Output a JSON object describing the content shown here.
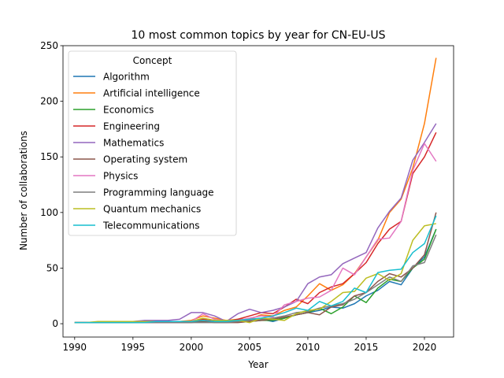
{
  "chart_data": {
    "type": "line",
    "title": "10 most common topics by year for CN-EU-US",
    "xlabel": "Year",
    "ylabel": "Number of collaborations",
    "xlim": [
      1989,
      2022.5
    ],
    "ylim": [
      -12,
      250
    ],
    "xticks": [
      1990,
      1995,
      2000,
      2005,
      2010,
      2015,
      2020
    ],
    "yticks": [
      0,
      50,
      100,
      150,
      200,
      250
    ],
    "grid": false,
    "legend": {
      "title": "Concept",
      "placement": "top-left"
    },
    "x": [
      1990,
      1991,
      1992,
      1993,
      1994,
      1995,
      1996,
      1997,
      1998,
      1999,
      2000,
      2001,
      2002,
      2003,
      2004,
      2005,
      2006,
      2007,
      2008,
      2009,
      2010,
      2011,
      2012,
      2013,
      2014,
      2015,
      2016,
      2017,
      2018,
      2019,
      2020,
      2021
    ],
    "series": [
      {
        "name": "Algorithm",
        "color": "#1f77b4",
        "values": [
          1,
          1,
          1,
          1,
          1,
          1,
          1,
          1,
          1,
          2,
          2,
          2,
          2,
          2,
          3,
          3,
          4,
          2,
          5,
          8,
          10,
          12,
          15,
          14,
          18,
          25,
          30,
          38,
          35,
          50,
          60,
          85
        ]
      },
      {
        "name": "Artificial intelligence",
        "color": "#ff7f0e",
        "values": [
          1,
          1,
          1,
          1,
          1,
          1,
          1,
          1,
          2,
          2,
          3,
          7,
          5,
          3,
          4,
          4,
          8,
          7,
          12,
          15,
          25,
          36,
          30,
          35,
          45,
          60,
          75,
          100,
          112,
          140,
          180,
          239
        ]
      },
      {
        "name": "Economics",
        "color": "#2ca02c",
        "values": [
          1,
          1,
          1,
          1,
          1,
          1,
          1,
          1,
          1,
          1,
          2,
          2,
          2,
          2,
          2,
          2,
          3,
          3,
          5,
          8,
          10,
          14,
          9,
          15,
          25,
          19,
          32,
          40,
          38,
          50,
          58,
          85
        ]
      },
      {
        "name": "Engineering",
        "color": "#d62728",
        "values": [
          1,
          1,
          1,
          1,
          1,
          1,
          1,
          1,
          1,
          2,
          2,
          4,
          3,
          2,
          4,
          7,
          10,
          9,
          15,
          22,
          18,
          28,
          33,
          36,
          45,
          55,
          72,
          85,
          92,
          135,
          150,
          172
        ]
      },
      {
        "name": "Mathematics",
        "color": "#9467bd",
        "values": [
          1,
          1,
          1,
          1,
          2,
          2,
          3,
          3,
          3,
          4,
          10,
          10,
          7,
          2,
          9,
          13,
          10,
          12,
          15,
          20,
          36,
          42,
          44,
          54,
          59,
          64,
          86,
          101,
          113,
          147,
          163,
          180
        ]
      },
      {
        "name": "Operating system",
        "color": "#8c564b",
        "values": [
          1,
          1,
          1,
          1,
          1,
          1,
          1,
          1,
          1,
          1,
          1,
          2,
          1,
          1,
          1,
          2,
          3,
          4,
          6,
          8,
          10,
          8,
          15,
          17,
          25,
          28,
          38,
          45,
          42,
          50,
          62,
          100
        ]
      },
      {
        "name": "Physics",
        "color": "#e377c2",
        "values": [
          1,
          1,
          1,
          1,
          1,
          1,
          1,
          1,
          1,
          1,
          2,
          9,
          4,
          2,
          3,
          5,
          7,
          6,
          17,
          20,
          23,
          24,
          30,
          50,
          44,
          60,
          76,
          77,
          92,
          138,
          162,
          146
        ]
      },
      {
        "name": "Programming language",
        "color": "#7f7f7f",
        "values": [
          1,
          1,
          1,
          1,
          1,
          1,
          1,
          1,
          1,
          1,
          1,
          1,
          1,
          1,
          2,
          3,
          4,
          5,
          7,
          10,
          11,
          14,
          16,
          18,
          22,
          28,
          35,
          42,
          38,
          52,
          55,
          80
        ]
      },
      {
        "name": "Quantum mechanics",
        "color": "#bcbd22",
        "values": [
          1,
          1,
          2,
          2,
          2,
          2,
          2,
          2,
          2,
          2,
          2,
          5,
          3,
          3,
          3,
          1,
          5,
          4,
          3,
          9,
          12,
          13,
          20,
          28,
          29,
          41,
          45,
          39,
          45,
          75,
          88,
          90
        ]
      },
      {
        "name": "Telecommunications",
        "color": "#17becf",
        "values": [
          1,
          1,
          1,
          1,
          1,
          1,
          1,
          2,
          2,
          2,
          2,
          3,
          2,
          2,
          3,
          4,
          5,
          7,
          10,
          14,
          12,
          20,
          16,
          20,
          32,
          28,
          46,
          48,
          49,
          64,
          72,
          97
        ]
      }
    ]
  }
}
